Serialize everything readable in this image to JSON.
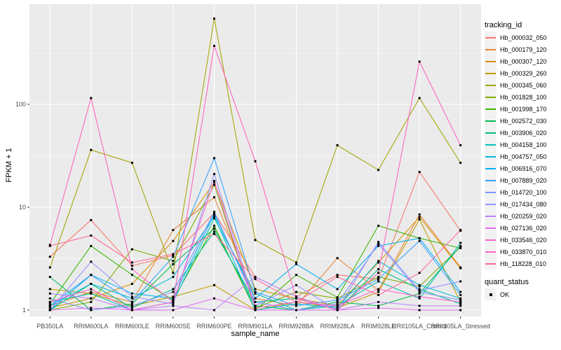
{
  "chart_data": {
    "type": "line",
    "title": "",
    "xlabel": "sample_name",
    "ylabel": "FPKM + 1",
    "y_scale": "log10",
    "y_ticks": [
      1,
      10,
      100
    ],
    "y_minor_ticks": [
      3.1623,
      31.623,
      316.23
    ],
    "ylim": [
      1,
      900
    ],
    "grid": true,
    "legend_position": "right",
    "categories": [
      "PB350LA",
      "RRIM600LA",
      "RRIM600LE",
      "RRIM600SE",
      "RRIM600PE",
      "RRIM901LA",
      "RRIM928BA",
      "RRIM928LA",
      "RRIM928LE",
      "RRII105LA_Control",
      "RRII105LA_Stressed"
    ],
    "series": [
      {
        "name": "Hb_000032_050",
        "color": "#F8766D",
        "values": [
          3.3,
          7.5,
          2.7,
          3.4,
          8.8,
          2.1,
          1.35,
          2.2,
          2.0,
          22,
          5.9
        ]
      },
      {
        "name": "Hb_000179_120",
        "color": "#EA8331",
        "values": [
          1.1,
          1.5,
          1.2,
          6.0,
          12.5,
          1.3,
          1.1,
          3.2,
          1.55,
          8.5,
          2.6
        ]
      },
      {
        "name": "Hb_000307_120",
        "color": "#D89000",
        "values": [
          1.05,
          1.3,
          1.8,
          4.7,
          17.5,
          1.6,
          1.3,
          1.1,
          2.9,
          8.0,
          2.55
        ]
      },
      {
        "name": "Hb_000329_260",
        "color": "#C09B00",
        "values": [
          1.6,
          1.45,
          1.1,
          1.35,
          1.75,
          1.0,
          1.2,
          1.05,
          1.5,
          7.6,
          1.2
        ]
      },
      {
        "name": "Hb_000345_060",
        "color": "#A3A500",
        "values": [
          2.6,
          36,
          27,
          2.3,
          680,
          4.8,
          2.9,
          40,
          23,
          115,
          27
        ]
      },
      {
        "name": "Hb_001828_100",
        "color": "#7CAE00",
        "values": [
          1.0,
          1.2,
          3.9,
          3.0,
          16.5,
          1.05,
          1.5,
          1.3,
          2.1,
          1.7,
          4.1
        ]
      },
      {
        "name": "Hb_001998_170",
        "color": "#39B600",
        "values": [
          1.15,
          4.2,
          2.2,
          1.25,
          6.6,
          1.0,
          2.2,
          1.33,
          6.6,
          5.0,
          4.0
        ]
      },
      {
        "name": "Hb_002572_030",
        "color": "#00BB4E",
        "values": [
          2.1,
          1.0,
          1.15,
          2.8,
          6.2,
          1.1,
          1.0,
          1.2,
          1.1,
          1.45,
          4.2
        ]
      },
      {
        "name": "Hb_003906_020",
        "color": "#00C087",
        "values": [
          1.0,
          1.8,
          1.05,
          1.6,
          5.8,
          1.2,
          1.3,
          1.0,
          2.5,
          1.6,
          1.15
        ]
      },
      {
        "name": "Hb_004158_100",
        "color": "#00C0B4",
        "values": [
          1.2,
          1.45,
          1.0,
          1.2,
          7.8,
          1.45,
          1.0,
          1.1,
          1.9,
          1.3,
          4.5
        ]
      },
      {
        "name": "Hb_004757_050",
        "color": "#00BCD8",
        "values": [
          1.1,
          1.8,
          1.3,
          2.1,
          8.2,
          1.0,
          1.15,
          1.05,
          3.0,
          1.75,
          1.3
        ]
      },
      {
        "name": "Hb_006916_070",
        "color": "#00B0F6",
        "values": [
          1.0,
          2.2,
          1.45,
          1.3,
          8.6,
          1.3,
          2.8,
          1.6,
          4.2,
          5.0,
          1.5
        ]
      },
      {
        "name": "Hb_007889_020",
        "color": "#35A2FF",
        "values": [
          1.1,
          2.2,
          1.2,
          3.3,
          30,
          1.5,
          1.1,
          1.25,
          2.0,
          4.7,
          1.4
        ]
      },
      {
        "name": "Hb_014720_100",
        "color": "#7F96FF",
        "values": [
          1.3,
          1.0,
          1.1,
          1.5,
          9.0,
          1.2,
          1.0,
          1.15,
          4.4,
          1.5,
          1.25
        ]
      },
      {
        "name": "Hb_017434_080",
        "color": "#9590FF",
        "values": [
          1.0,
          2.95,
          1.35,
          1.15,
          21,
          1.1,
          1.75,
          1.0,
          4.6,
          1.55,
          1.9
        ]
      },
      {
        "name": "Hb_020259_020",
        "color": "#BC81FF",
        "values": [
          1.45,
          1.3,
          1.0,
          1.1,
          1.0,
          2.1,
          1.35,
          1.0,
          1.2,
          1.1,
          1.1
        ]
      },
      {
        "name": "Hb_027136_020",
        "color": "#E76BF3",
        "values": [
          1.0,
          1.05,
          1.0,
          1.0,
          1.3,
          1.0,
          1.0,
          1.0,
          1.05,
          1.0,
          1.0
        ]
      },
      {
        "name": "Hb_033546_020",
        "color": "#FD61D1",
        "values": [
          1.2,
          1.6,
          1.0,
          1.2,
          18,
          1.05,
          1.2,
          1.1,
          1.6,
          1.35,
          1.2
        ]
      },
      {
        "name": "Hb_033870_010",
        "color": "#FF62BC",
        "values": [
          4.3,
          115,
          2.5,
          1.2,
          370,
          28,
          1.3,
          1.0,
          2.3,
          260,
          40
        ]
      },
      {
        "name": "Hb_118228_010",
        "color": "#FF6A98",
        "values": [
          4.2,
          5.3,
          2.9,
          3.5,
          5.5,
          2.0,
          1.2,
          2.1,
          1.4,
          2.3,
          6.0
        ]
      }
    ],
    "legend": {
      "tracking_title": "tracking_id",
      "quant_title": "quant_status",
      "quant_entries": [
        {
          "label": "OK",
          "shape": "black-square"
        }
      ]
    },
    "point_shape": "black-square"
  },
  "theme": {
    "panel_bg": "#EBEBEB",
    "grid_color": "#FFFFFF",
    "axis_text_color": "#4D4D4D",
    "axis_title_color": "#000000",
    "tick_color": "#333333",
    "legend_key_bg": "#F2F2F2",
    "point_color": "#000000",
    "background": "#FFFFFF"
  }
}
